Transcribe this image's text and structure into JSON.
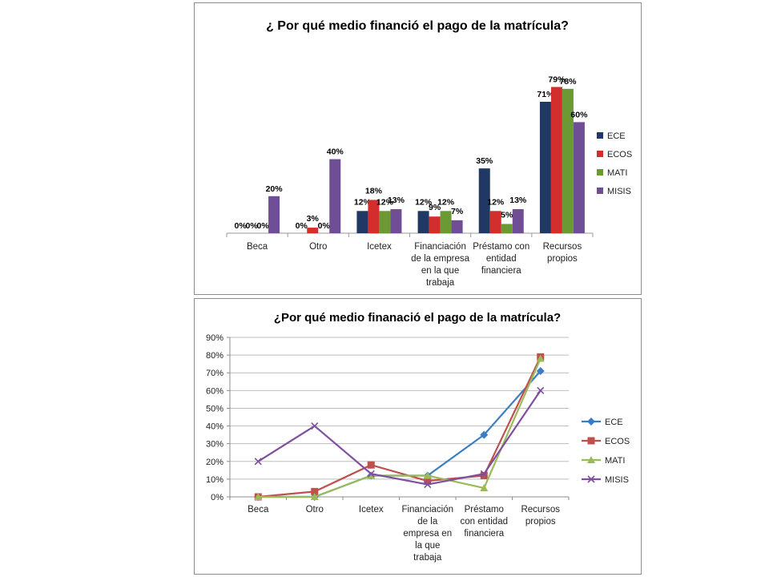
{
  "colors": {
    "bar": [
      "#1f3864",
      "#d42d2d",
      "#6b9a34",
      "#6f4e96"
    ],
    "line": [
      "#3b7dc4",
      "#c0504d",
      "#9bbb59",
      "#7f4f9e"
    ]
  },
  "chart_data": [
    {
      "type": "bar",
      "title": "¿ Por qué medio financió el pago de la matrícula?",
      "categories": [
        [
          "Beca"
        ],
        [
          "Otro"
        ],
        [
          "Icetex"
        ],
        [
          "Financiación",
          "de la empresa",
          "en la que",
          "trabaja"
        ],
        [
          "Préstamo con",
          "entidad",
          "financiera"
        ],
        [
          "Recursos",
          "propios"
        ]
      ],
      "series": [
        {
          "name": "ECE",
          "values": [
            0,
            0,
            12,
            12,
            35,
            71
          ]
        },
        {
          "name": "ECOS",
          "values": [
            0,
            3,
            18,
            9,
            12,
            79
          ]
        },
        {
          "name": "MATI",
          "values": [
            0,
            0,
            12,
            12,
            5,
            78
          ]
        },
        {
          "name": "MISIS",
          "values": [
            20,
            40,
            13,
            7,
            13,
            60
          ]
        }
      ],
      "ylim": [
        0,
        100
      ],
      "value_suffix": "%",
      "data_labels": true,
      "grid": false,
      "legend": "right"
    },
    {
      "type": "line",
      "title": "¿Por qué medio finanació el pago de la matrícula?",
      "categories": [
        [
          "Beca"
        ],
        [
          "Otro"
        ],
        [
          "Icetex"
        ],
        [
          "Financiación",
          "de la",
          "empresa en",
          "la que",
          "trabaja"
        ],
        [
          "Préstamo",
          "con entidad",
          "financiera"
        ],
        [
          "Recursos",
          "propios"
        ]
      ],
      "series": [
        {
          "name": "ECE",
          "marker": "diamond",
          "values": [
            0,
            0,
            12,
            12,
            35,
            71
          ]
        },
        {
          "name": "ECOS",
          "marker": "square",
          "values": [
            0,
            3,
            18,
            9,
            12,
            79
          ]
        },
        {
          "name": "MATI",
          "marker": "triangle",
          "values": [
            0,
            0,
            12,
            12,
            5,
            78
          ]
        },
        {
          "name": "MISIS",
          "marker": "x",
          "values": [
            20,
            40,
            13,
            7,
            13,
            60
          ]
        }
      ],
      "ylim": [
        0,
        90
      ],
      "yticks": [
        "0%",
        "10%",
        "20%",
        "30%",
        "40%",
        "50%",
        "60%",
        "70%",
        "80%",
        "90%"
      ],
      "grid": true,
      "legend": "right"
    }
  ]
}
